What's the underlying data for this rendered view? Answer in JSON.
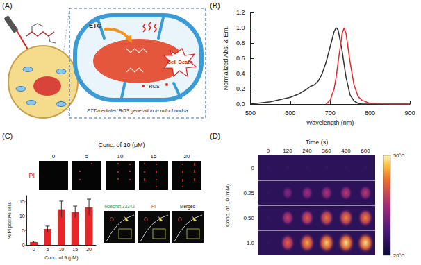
{
  "figure": {
    "panel_labels": [
      "(A)",
      "(B)",
      "(C)",
      "(D)"
    ],
    "panel_a": {
      "texts": {
        "etc": "ETC",
        "death": "Cell Death",
        "ros": "ROS",
        "caption": "PTT-mediated ROS generation in mitochondria"
      }
    },
    "panel_c": {
      "title": "Conc. of 10 (μM)",
      "concentrations": [
        0,
        5,
        10,
        15,
        20
      ],
      "row_label": "PI",
      "stain_labels": [
        {
          "text": "Hoechst 33342",
          "color": "#1fa34a"
        },
        {
          "text": "PI",
          "color": "#e02020"
        },
        {
          "text": "Merged",
          "color": "#111111"
        }
      ]
    },
    "panel_d": {
      "title": "Time (s)",
      "times": [
        0,
        120,
        240,
        360,
        480,
        600
      ],
      "row_title": "Conc. of 10 (mM)",
      "concentrations": [
        "0",
        "0.25",
        "0.50",
        "1.0"
      ],
      "cells": [
        [
          25,
          25,
          25,
          25,
          25,
          25
        ],
        [
          25,
          33,
          35,
          36,
          37,
          37
        ],
        [
          25,
          38,
          41,
          43,
          44,
          44
        ],
        [
          25,
          42,
          46,
          48,
          49,
          49
        ]
      ],
      "colorbar": {
        "range": [
          20,
          50
        ],
        "ticks": [
          {
            "value": 50,
            "label": "50°C"
          },
          {
            "value": 20,
            "label": "20°C"
          }
        ]
      }
    }
  },
  "chart_data": [
    {
      "type": "line",
      "xlabel": "Wavelength (nm)",
      "ylabel": "Normalized Abs. & Em.",
      "x": [
        500,
        550,
        600,
        620,
        640,
        650,
        660,
        670,
        680,
        690,
        700,
        710,
        715,
        720,
        730,
        735,
        740,
        750,
        760,
        770,
        780,
        800,
        850,
        900
      ],
      "series": [
        {
          "color": "#333333",
          "values": [
            0,
            0.03,
            0.09,
            0.13,
            0.19,
            0.23,
            0.25,
            0.3,
            0.4,
            0.55,
            0.75,
            0.95,
            1.0,
            0.97,
            0.7,
            0.52,
            0.35,
            0.12,
            0.04,
            0.01,
            0,
            0,
            0,
            0
          ]
        },
        {
          "color": "#e8282b",
          "values": [
            null,
            null,
            null,
            null,
            null,
            null,
            null,
            null,
            null,
            0,
            0.05,
            0.2,
            0.35,
            0.55,
            0.92,
            1.0,
            0.92,
            0.55,
            0.25,
            0.1,
            0.05,
            0.01,
            0,
            0
          ]
        }
      ],
      "xlim": [
        500,
        900
      ],
      "xticks": [
        500,
        600,
        700,
        800,
        900
      ],
      "ylim": [
        0,
        1.2
      ],
      "yticks": [
        {
          "value": 0,
          "label": "0.0"
        },
        0.2,
        0.4,
        0.6,
        0.8,
        {
          "value": 1,
          "label": "1.0"
        },
        1.2
      ],
      "grid": false,
      "marker": "none"
    },
    {
      "type": "bar",
      "xlabel": "Conc. of 9 (μM)",
      "ylabel": "% PI positive cells",
      "categories": [
        "0",
        "5",
        "10",
        "15",
        "20"
      ],
      "values": [
        1,
        5.5,
        12.3,
        11.4,
        13
      ],
      "errors": [
        0.3,
        1,
        2.8,
        2,
        2.8
      ],
      "color": "#e8262a",
      "ylim": [
        0,
        17
      ],
      "yticks": [
        0,
        5,
        10,
        15
      ],
      "grid": false
    }
  ]
}
